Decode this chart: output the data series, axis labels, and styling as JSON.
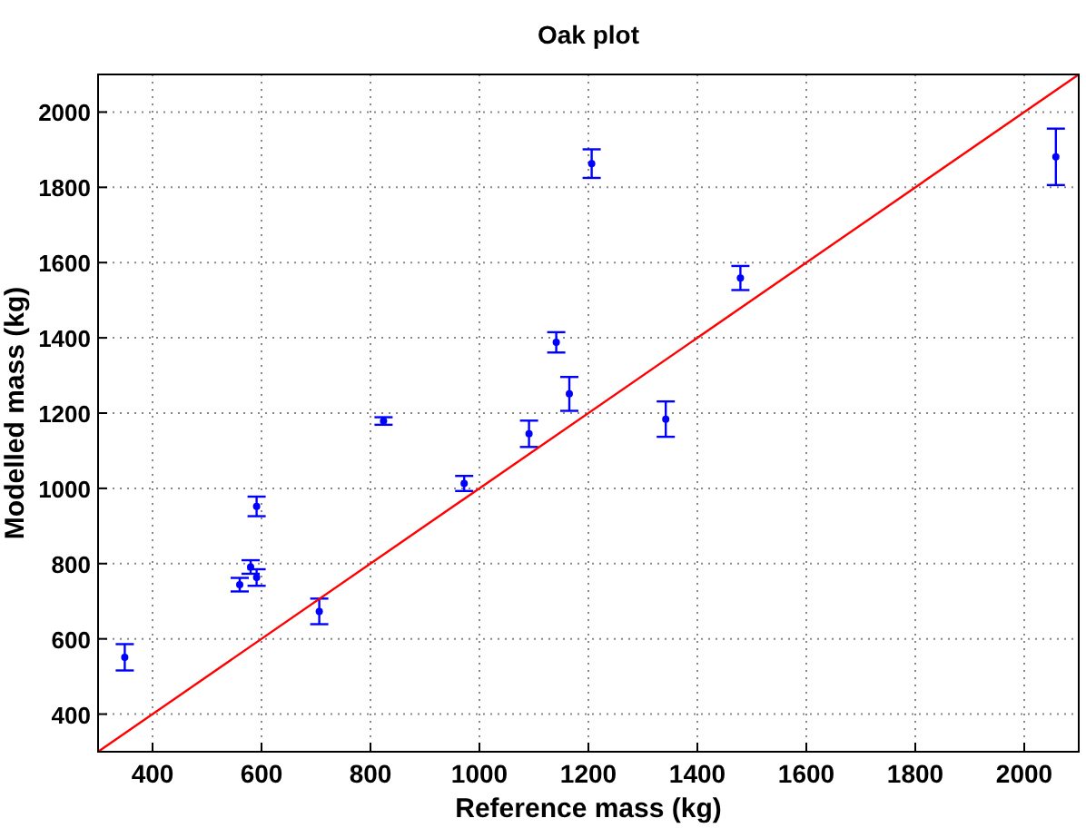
{
  "chart_data": {
    "type": "scatter",
    "title": "Oak plot",
    "xlabel": "Reference mass (kg)",
    "ylabel": "Modelled mass (kg)",
    "xlim": [
      300,
      2100
    ],
    "ylim": [
      300,
      2100
    ],
    "xticks": [
      400,
      600,
      800,
      1000,
      1200,
      1400,
      1600,
      1800,
      2000
    ],
    "yticks": [
      400,
      600,
      800,
      1000,
      1200,
      1400,
      1600,
      1800,
      2000
    ],
    "grid": true,
    "series": [
      {
        "color": "#0000ff",
        "marker": "circle",
        "x": [
          349,
          560,
          580,
          591,
          591,
          706,
          824,
          972,
          1091,
          1141,
          1165,
          1206,
          1342,
          1479,
          2058
        ],
        "values": [
          551,
          744,
          791,
          763,
          952,
          673,
          1179,
          1013,
          1145,
          1388,
          1251,
          1863,
          1184,
          1559,
          1881
        ],
        "errors": [
          35,
          18,
          18,
          22,
          26,
          34,
          10,
          20,
          35,
          27,
          45,
          38,
          47,
          32,
          75
        ]
      },
      {
        "type": "line",
        "color": "#ff0000",
        "marker": "none",
        "line_style": "solid",
        "x": [
          300,
          2100
        ],
        "values": [
          300,
          2100
        ]
      }
    ]
  }
}
